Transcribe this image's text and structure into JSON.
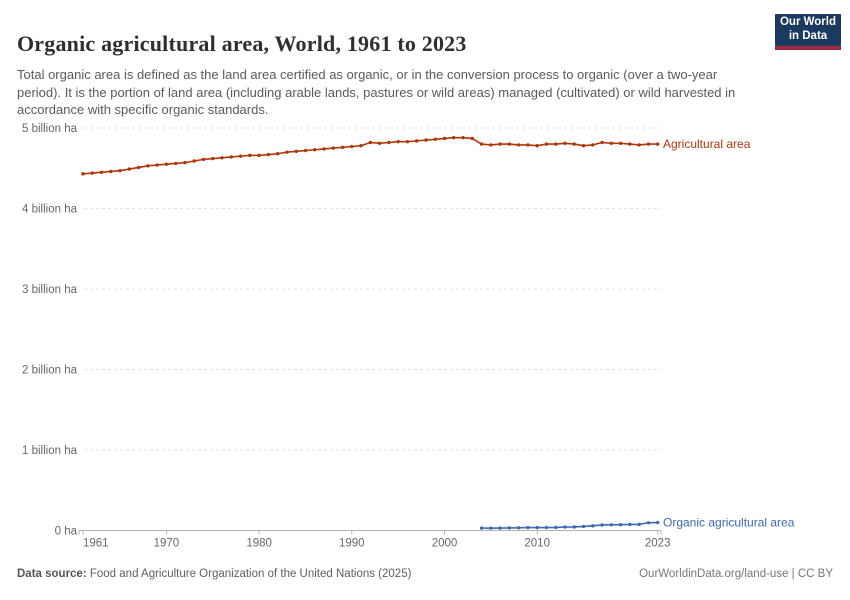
{
  "header": {
    "title": "Organic agricultural area, World, 1961 to 2023",
    "subtitle": "Total organic area is defined as the land area certified as organic, or in the conversion process to organic (over a two-year period). It is the portion of land area (including arable lands, pastures or wild areas) managed (cultivated) or wild harvested in accordance with specific organic standards.",
    "logo": {
      "line1": "Our World",
      "line2": "in Data",
      "bg": "#1a3a5f",
      "stripe": "#9e2c41",
      "text_color": "#ffffff"
    }
  },
  "chart_data": {
    "type": "line",
    "title": "Organic agricultural area, World, 1961 to 2023",
    "xlabel": "",
    "ylabel": "",
    "unit": "billion hectares",
    "x_range": [
      1961,
      2023
    ],
    "ylim": [
      0,
      5
    ],
    "grid": "horizontal dashed",
    "legend_position": "end-of-line labels",
    "y_ticks": [
      {
        "value": 0,
        "label": "0 ha"
      },
      {
        "value": 1,
        "label": "1 billion ha"
      },
      {
        "value": 2,
        "label": "2 billion ha"
      },
      {
        "value": 3,
        "label": "3 billion ha"
      },
      {
        "value": 4,
        "label": "4 billion ha"
      },
      {
        "value": 5,
        "label": "5 billion ha"
      }
    ],
    "x_ticks": [
      1961,
      1970,
      1980,
      1990,
      2000,
      2010,
      2023
    ],
    "series": [
      {
        "name": "Agricultural area",
        "color": "#B13507",
        "years": [
          1961,
          1962,
          1963,
          1964,
          1965,
          1966,
          1967,
          1968,
          1969,
          1970,
          1971,
          1972,
          1973,
          1974,
          1975,
          1976,
          1977,
          1978,
          1979,
          1980,
          1981,
          1982,
          1983,
          1984,
          1985,
          1986,
          1987,
          1988,
          1989,
          1990,
          1991,
          1992,
          1993,
          1994,
          1995,
          1996,
          1997,
          1998,
          1999,
          2000,
          2001,
          2002,
          2003,
          2004,
          2005,
          2006,
          2007,
          2008,
          2009,
          2010,
          2011,
          2012,
          2013,
          2014,
          2015,
          2016,
          2017,
          2018,
          2019,
          2020,
          2021,
          2022,
          2023
        ],
        "values": [
          4.43,
          4.44,
          4.45,
          4.46,
          4.47,
          4.49,
          4.51,
          4.53,
          4.54,
          4.55,
          4.56,
          4.57,
          4.59,
          4.61,
          4.62,
          4.63,
          4.64,
          4.65,
          4.66,
          4.66,
          4.67,
          4.68,
          4.7,
          4.71,
          4.72,
          4.73,
          4.74,
          4.75,
          4.76,
          4.77,
          4.78,
          4.82,
          4.81,
          4.82,
          4.83,
          4.83,
          4.84,
          4.85,
          4.86,
          4.87,
          4.88,
          4.88,
          4.87,
          4.8,
          4.79,
          4.8,
          4.8,
          4.79,
          4.79,
          4.78,
          4.8,
          4.8,
          4.81,
          4.8,
          4.78,
          4.79,
          4.82,
          4.81,
          4.81,
          4.8,
          4.79,
          4.8,
          4.8
        ]
      },
      {
        "name": "Organic agricultural area",
        "color": "#3D6BB3",
        "years": [
          2004,
          2005,
          2006,
          2007,
          2008,
          2009,
          2010,
          2011,
          2012,
          2013,
          2014,
          2015,
          2016,
          2017,
          2018,
          2019,
          2020,
          2021,
          2022,
          2023
        ],
        "values": [
          0.03,
          0.029,
          0.03,
          0.032,
          0.034,
          0.036,
          0.036,
          0.037,
          0.038,
          0.043,
          0.044,
          0.05,
          0.058,
          0.069,
          0.071,
          0.072,
          0.075,
          0.076,
          0.096,
          0.099
        ]
      }
    ],
    "style": {
      "gridline_color": "#e0e0e0",
      "axis_color": "#b3b3b3",
      "tick_label_color": "#666666"
    }
  },
  "footer": {
    "source_label": "Data source:",
    "source_text": " Food and Agriculture Organization of the United Nations (2025)",
    "credit": "OurWorldinData.org/land-use | CC BY"
  }
}
